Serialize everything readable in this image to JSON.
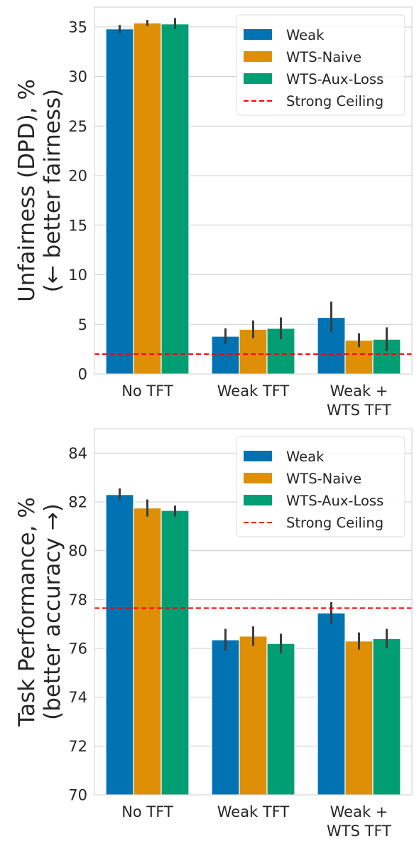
{
  "chart_data": [
    {
      "type": "bar",
      "categories": [
        "No TFT",
        "Weak TFT",
        "Weak +\nWTS TFT"
      ],
      "ylabel": "Unfairness (DPD), %\n(← better fairness)",
      "ylim": [
        0,
        37
      ],
      "yticks": [
        0,
        5,
        10,
        15,
        20,
        25,
        30,
        35
      ],
      "grid": true,
      "legend_position": "top-right",
      "series": [
        {
          "name": "Weak",
          "color": "#0173b2",
          "values": [
            34.8,
            3.8,
            5.7
          ],
          "error": [
            [
              34.4,
              35.2
            ],
            [
              3.0,
              4.6
            ],
            [
              4.2,
              7.3
            ]
          ]
        },
        {
          "name": "WTS-Naive",
          "color": "#de8f05",
          "values": [
            35.4,
            4.5,
            3.4
          ],
          "error": [
            [
              35.1,
              35.7
            ],
            [
              3.6,
              5.4
            ],
            [
              2.7,
              4.1
            ]
          ]
        },
        {
          "name": "WTS-Aux-Loss",
          "color": "#029e73",
          "values": [
            35.3,
            4.6,
            3.5
          ],
          "error": [
            [
              34.8,
              35.9
            ],
            [
              3.5,
              5.7
            ],
            [
              2.3,
              4.7
            ]
          ]
        }
      ],
      "reference_line": {
        "name": "Strong Ceiling",
        "value": 2.0,
        "color": "#ff0000"
      }
    },
    {
      "type": "bar",
      "categories": [
        "No TFT",
        "Weak TFT",
        "Weak +\nWTS TFT"
      ],
      "ylabel": "Task Performance, %\n(better accuracy →)",
      "ylim": [
        70,
        85
      ],
      "yticks": [
        70,
        72,
        74,
        76,
        78,
        80,
        82,
        84
      ],
      "grid": true,
      "legend_position": "top-right",
      "series": [
        {
          "name": "Weak",
          "color": "#0173b2",
          "values": [
            82.3,
            76.35,
            77.45
          ],
          "error": [
            [
              82.1,
              82.55
            ],
            [
              75.9,
              76.8
            ],
            [
              77.0,
              77.9
            ]
          ]
        },
        {
          "name": "WTS-Naive",
          "color": "#de8f05",
          "values": [
            81.75,
            76.5,
            76.3
          ],
          "error": [
            [
              81.4,
              82.1
            ],
            [
              76.1,
              76.9
            ],
            [
              75.95,
              76.65
            ]
          ]
        },
        {
          "name": "WTS-Aux-Loss",
          "color": "#029e73",
          "values": [
            81.65,
            76.2,
            76.4
          ],
          "error": [
            [
              81.4,
              81.85
            ],
            [
              75.8,
              76.6
            ],
            [
              76.0,
              76.8
            ]
          ]
        }
      ],
      "reference_line": {
        "name": "Strong Ceiling",
        "value": 77.65,
        "color": "#ff0000"
      }
    }
  ]
}
